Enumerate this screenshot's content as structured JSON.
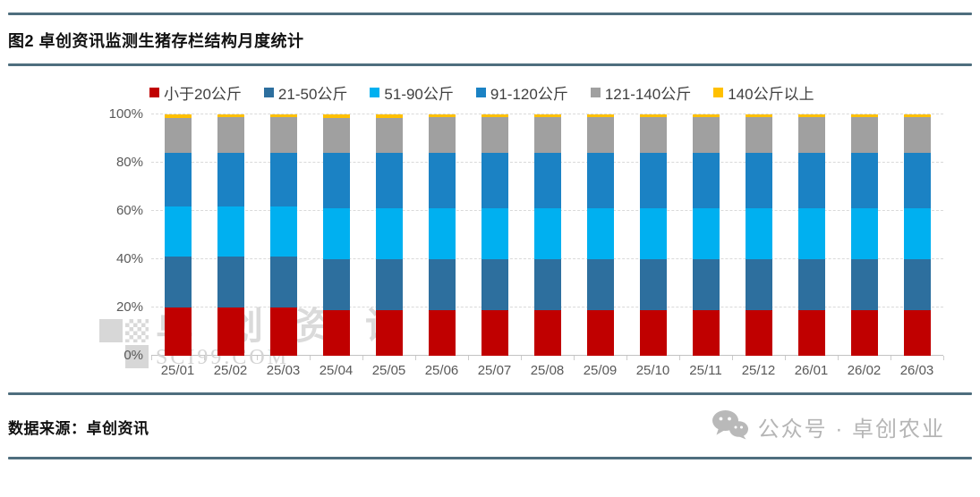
{
  "header": {
    "title": "图2 卓创资讯监测生猪存栏结构月度统计"
  },
  "footer": {
    "source": "数据来源：卓创资讯",
    "wechat": "公众号 · 卓创农业"
  },
  "watermark": {
    "name": "卓创资讯",
    "site": "SCI99.COM"
  },
  "colors": {
    "rule": "#4e6e7e",
    "axis_text": "#595959",
    "legend_text": "#3f3f3f",
    "watermark": "#d9d9d9",
    "wechat_gray": "#b5b5b5"
  },
  "chart_data": {
    "type": "bar",
    "stacked": true,
    "title": "",
    "xlabel": "",
    "ylabel": "",
    "unit": "%",
    "ylim": [
      0,
      100
    ],
    "grid": "horizontal-dashed",
    "legend_position": "top",
    "y_ticks": [
      "0%",
      "20%",
      "40%",
      "60%",
      "80%",
      "100%"
    ],
    "categories": [
      "25/01",
      "25/02",
      "25/03",
      "25/04",
      "25/05",
      "25/06",
      "25/07",
      "25/08",
      "25/09",
      "25/10",
      "25/11",
      "25/12",
      "26/01",
      "26/02",
      "26/03"
    ],
    "series": [
      {
        "name": "小于20公斤",
        "color": "#c00000",
        "values": [
          20,
          20,
          20,
          19,
          19,
          19,
          19,
          19,
          19,
          19,
          19,
          19,
          19,
          19,
          19
        ]
      },
      {
        "name": "21-50公斤",
        "color": "#2d6f9e",
        "values": [
          21,
          21,
          21,
          21,
          21,
          21,
          21,
          21,
          21,
          21,
          21,
          21,
          21,
          21,
          21
        ]
      },
      {
        "name": "51-90公斤",
        "color": "#00b0f0",
        "values": [
          21,
          21,
          21,
          21,
          21,
          21,
          21,
          21,
          21,
          21,
          21,
          21,
          21,
          21,
          21
        ]
      },
      {
        "name": "91-120公斤",
        "color": "#1b82c4",
        "values": [
          22,
          22,
          22,
          23,
          23,
          23,
          23,
          23,
          23,
          23,
          23,
          23,
          23,
          23,
          23
        ]
      },
      {
        "name": "121-140公斤",
        "color": "#a0a0a0",
        "values": [
          14.5,
          15,
          15,
          14.5,
          14.5,
          15,
          15,
          15,
          15,
          15,
          15,
          15,
          15,
          15,
          15
        ]
      },
      {
        "name": "140公斤以上",
        "color": "#ffc000",
        "values": [
          1.5,
          1,
          1,
          1.5,
          1.5,
          1,
          1,
          1,
          1,
          1,
          1,
          1,
          1,
          1,
          1
        ]
      }
    ]
  }
}
